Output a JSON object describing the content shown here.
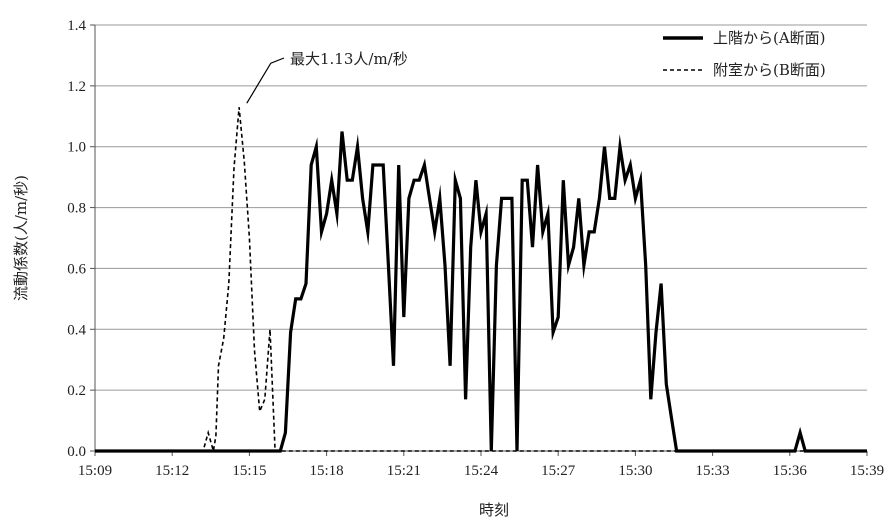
{
  "chart_data": {
    "type": "line",
    "title": "",
    "xlabel": "時刻",
    "ylabel": "流動係数(人/m/秒)",
    "ylim": [
      0,
      1.4
    ],
    "yticks": [
      "0.0",
      "0.2",
      "0.4",
      "0.6",
      "0.8",
      "1.0",
      "1.2",
      "1.4"
    ],
    "xlim_minutes": [
      0,
      30
    ],
    "xticks": [
      "15:09",
      "15:12",
      "15:15",
      "15:18",
      "15:21",
      "15:24",
      "15:27",
      "15:30",
      "15:33",
      "15:36",
      "15:39"
    ],
    "grid": "horizontal",
    "legend_position": "top-right",
    "annotation": {
      "text": "最大1.13人/m/秒",
      "x": 5.9,
      "y": 1.13
    },
    "series": [
      {
        "name": "上階から(A断面)",
        "style": "solid",
        "color": "#000000",
        "x": [
          0,
          7.2,
          7.4,
          7.6,
          7.8,
          8.0,
          8.2,
          8.4,
          8.6,
          8.8,
          9.0,
          9.2,
          9.4,
          9.6,
          9.8,
          10.0,
          10.2,
          10.4,
          10.6,
          10.8,
          11.0,
          11.2,
          11.4,
          11.6,
          11.8,
          12.0,
          12.2,
          12.4,
          12.6,
          12.8,
          13.0,
          13.2,
          13.4,
          13.6,
          13.8,
          14.0,
          14.2,
          14.4,
          14.6,
          14.8,
          15.0,
          15.2,
          15.4,
          15.6,
          15.8,
          16.0,
          16.2,
          16.4,
          16.6,
          16.8,
          17.0,
          17.2,
          17.4,
          17.6,
          17.8,
          18.0,
          18.2,
          18.4,
          18.6,
          18.8,
          19.0,
          19.2,
          19.4,
          19.6,
          19.8,
          20.0,
          20.2,
          20.4,
          20.6,
          20.8,
          21.0,
          21.2,
          21.4,
          21.6,
          21.8,
          22.0,
          22.2,
          22.4,
          22.6,
          22.8,
          23.0,
          23.2,
          23.4,
          23.6,
          23.8,
          24.0,
          24.2,
          24.4,
          24.6,
          24.8,
          25.0,
          25.2,
          25.4,
          25.6,
          25.8,
          26.0,
          26.2,
          26.4,
          26.6,
          27.0,
          27.2,
          27.4,
          27.6,
          30
        ],
        "values": [
          0,
          0,
          0.06,
          0.39,
          0.5,
          0.5,
          0.55,
          0.94,
          1.0,
          0.72,
          0.78,
          0.89,
          0.78,
          1.05,
          0.89,
          0.89,
          1.0,
          0.83,
          0.72,
          0.94,
          0.94,
          0.94,
          0.61,
          0.28,
          0.94,
          0.44,
          0.83,
          0.89,
          0.89,
          0.94,
          0.83,
          0.72,
          0.83,
          0.61,
          0.28,
          0.89,
          0.83,
          0.17,
          0.67,
          0.89,
          0.72,
          0.78,
          0.0,
          0.61,
          0.83,
          0.83,
          0.83,
          0.0,
          0.89,
          0.89,
          0.67,
          0.94,
          0.72,
          0.78,
          0.39,
          0.44,
          0.89,
          0.61,
          0.67,
          0.83,
          0.61,
          0.72,
          0.72,
          0.83,
          1.0,
          0.83,
          0.83,
          1.0,
          0.89,
          0.94,
          0.83,
          0.89,
          0.61,
          0.17,
          0.39,
          0.55,
          0.22,
          0.11,
          0.0,
          0.0,
          0.0,
          0.0,
          0.0,
          0.0,
          0.0,
          0.0,
          0.0,
          0.0,
          0.0,
          0.0,
          0.0,
          0.0,
          0.0,
          0.0,
          0.0,
          0.0,
          0.0,
          0.0,
          0.0,
          0.0,
          0.0,
          0.06,
          0.0,
          0.0
        ]
      },
      {
        "name": "附室から(B断面)",
        "style": "dashed",
        "color": "#000000",
        "x": [
          0,
          4.2,
          4.4,
          4.6,
          4.7,
          4.8,
          5.0,
          5.2,
          5.4,
          5.6,
          5.8,
          6.0,
          6.2,
          6.4,
          6.6,
          6.8,
          7.0,
          7.1,
          7.2,
          7.4,
          30
        ],
        "values": [
          0,
          0,
          0.06,
          0.0,
          0.05,
          0.28,
          0.37,
          0.55,
          0.93,
          1.13,
          0.95,
          0.7,
          0.33,
          0.13,
          0.17,
          0.4,
          0.0,
          0.0,
          0.0,
          0.0,
          0
        ]
      }
    ]
  }
}
